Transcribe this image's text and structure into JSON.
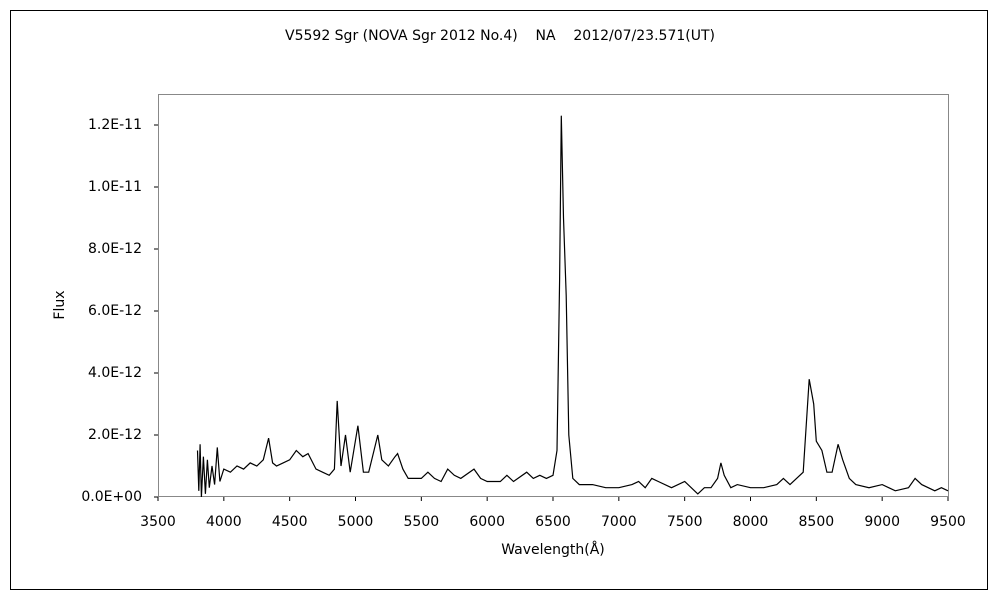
{
  "chart_data": {
    "type": "line",
    "title": "V5592 Sgr (NOVA Sgr 2012 No.4)    NA    2012/07/23.571(UT)",
    "x_label": "Wavelength(Å)",
    "y_label": "Flux",
    "color": "#000000",
    "xlim": [
      3500,
      9500
    ],
    "ylim": [
      0,
      1.3e-11
    ],
    "xticks": [
      3500,
      4000,
      4500,
      5000,
      5500,
      6000,
      6500,
      7000,
      7500,
      8000,
      8500,
      9000,
      9500
    ],
    "yticks": [
      {
        "value": 0,
        "label": "0.0E+00"
      },
      {
        "value": 2e-12,
        "label": "2.0E-12"
      },
      {
        "value": 4e-12,
        "label": "4.0E-12"
      },
      {
        "value": 6e-12,
        "label": "6.0E-12"
      },
      {
        "value": 8e-12,
        "label": "8.0E-12"
      },
      {
        "value": 1e-11,
        "label": "1.0E-11"
      },
      {
        "value": 1.2e-11,
        "label": "1.2E-11"
      }
    ],
    "x": [
      3800,
      3810,
      3820,
      3830,
      3845,
      3860,
      3875,
      3890,
      3910,
      3930,
      3950,
      3970,
      4000,
      4050,
      4100,
      4150,
      4200,
      4250,
      4300,
      4340,
      4370,
      4400,
      4450,
      4500,
      4550,
      4600,
      4640,
      4700,
      4750,
      4800,
      4840,
      4861,
      4890,
      4924,
      4960,
      5018,
      5060,
      5100,
      5169,
      5200,
      5250,
      5300,
      5320,
      5360,
      5400,
      5500,
      5550,
      5600,
      5650,
      5700,
      5750,
      5800,
      5900,
      5950,
      6000,
      6100,
      6150,
      6200,
      6300,
      6350,
      6400,
      6450,
      6500,
      6530,
      6550,
      6563,
      6580,
      6600,
      6620,
      6650,
      6700,
      6800,
      6900,
      7000,
      7100,
      7150,
      7200,
      7250,
      7300,
      7400,
      7500,
      7600,
      7650,
      7700,
      7750,
      7775,
      7800,
      7850,
      7900,
      8000,
      8100,
      8200,
      8250,
      8300,
      8400,
      8446,
      8480,
      8500,
      8542,
      8580,
      8620,
      8665,
      8700,
      8750,
      8800,
      8900,
      9000,
      9100,
      9200,
      9250,
      9300,
      9400,
      9450,
      9500
    ],
    "values": [
      1.5e-12,
      2e-13,
      1.7e-12,
      0,
      1.3e-12,
      1e-13,
      1.2e-12,
      3e-13,
      1e-12,
      4e-13,
      1.6e-12,
      5e-13,
      9e-13,
      8e-13,
      1e-12,
      9e-13,
      1.1e-12,
      1e-12,
      1.2e-12,
      1.9e-12,
      1.1e-12,
      1e-12,
      1.1e-12,
      1.2e-12,
      1.5e-12,
      1.3e-12,
      1.4e-12,
      9e-13,
      8e-13,
      7e-13,
      9e-13,
      3.1e-12,
      1e-12,
      2e-12,
      8e-13,
      2.3e-12,
      8e-13,
      8e-13,
      2e-12,
      1.2e-12,
      1e-12,
      1.3e-12,
      1.4e-12,
      9e-13,
      6e-13,
      6e-13,
      8e-13,
      6e-13,
      5e-13,
      9e-13,
      7e-13,
      6e-13,
      9e-13,
      6e-13,
      5e-13,
      5e-13,
      7e-13,
      5e-13,
      8e-13,
      6e-13,
      7e-13,
      6e-13,
      7e-13,
      1.5e-12,
      7e-12,
      1.23e-11,
      9e-12,
      6.5e-12,
      2e-12,
      6e-13,
      4e-13,
      4e-13,
      3e-13,
      3e-13,
      4e-13,
      5e-13,
      3e-13,
      6e-13,
      5e-13,
      3e-13,
      5e-13,
      1e-13,
      3e-13,
      3e-13,
      6e-13,
      1.1e-12,
      7e-13,
      3e-13,
      4e-13,
      3e-13,
      3e-13,
      4e-13,
      6e-13,
      4e-13,
      8e-13,
      3.8e-12,
      3e-12,
      1.8e-12,
      1.5e-12,
      8e-13,
      8e-13,
      1.7e-12,
      1.2e-12,
      6e-13,
      4e-13,
      3e-13,
      4e-13,
      2e-13,
      3e-13,
      6e-13,
      4e-13,
      2e-13,
      3e-13,
      2e-13
    ]
  }
}
